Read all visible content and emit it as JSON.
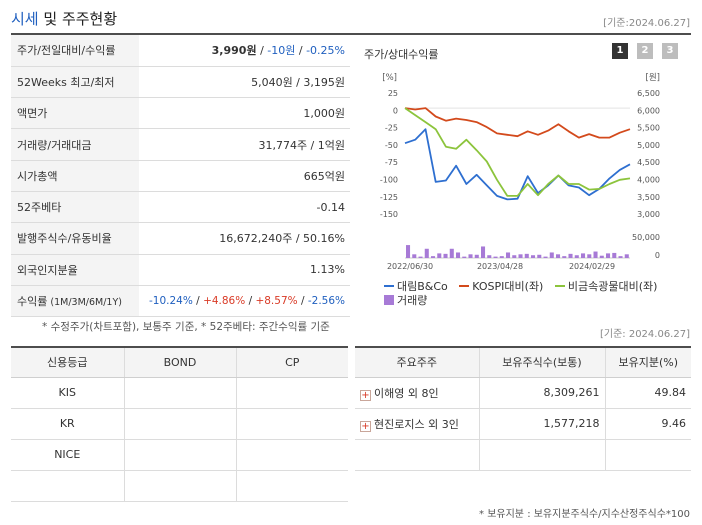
{
  "header": {
    "title_a": "시세",
    "title_b": " 및 주주현황",
    "date": "[기준:2024.06.27]"
  },
  "info": {
    "rows": [
      {
        "key": "주가/전일대비/수익률",
        "v1": "3,990원",
        "v2": " / ",
        "v3": "-10원",
        "v4": " / ",
        "v5": "-0.25%"
      },
      {
        "key": "52Weeks 최고/최저",
        "value": "5,040원 / 3,195원"
      },
      {
        "key": "액면가",
        "value": "1,000원"
      },
      {
        "key": "거래량/거래대금",
        "value": "31,774주 / 1억원"
      },
      {
        "key": "시가총액",
        "value": "665억원"
      },
      {
        "key": "52주베타",
        "value": "-0.14"
      },
      {
        "key": "발행주식수/유동비율",
        "value": "16,672,240주 / 50.16%"
      },
      {
        "key": "외국인지분율",
        "value": "1.13%"
      }
    ],
    "returns": {
      "key": "수익률",
      "key_sub": " (1M/3M/6M/1Y)",
      "r1": "-10.24%",
      "r2": "+4.86%",
      "r3": "+8.57%",
      "r4": "-2.56%",
      "sep": "/"
    },
    "note": "* 수정주가(차트포함), 보통주 기준, * 52주베타: 주간수익률 기준"
  },
  "chart": {
    "title": "주가/상대수익률",
    "pages": [
      "1",
      "2",
      "3"
    ],
    "left_unit": "[%]",
    "right_unit": "[원]",
    "colors": {
      "company": "#2e6fd0",
      "kospi": "#d34a1c",
      "sector": "#8cc43c",
      "volume": "#a77ad6"
    },
    "legend": {
      "company": "대림B&Co",
      "kospi": "KOSPI대비(좌)",
      "sector": "비금속광물대비(좌)",
      "volume": "거래량"
    }
  },
  "chart_data": {
    "type": "line",
    "x_ticks": [
      "2022/06/30",
      "2023/04/28",
      "2024/02/29"
    ],
    "y_left_ticks": [
      "25",
      "0",
      "-25",
      "-50",
      "-75",
      "-100",
      "-125",
      "-150"
    ],
    "y_right_ticks": [
      "6,500",
      "6,000",
      "5,500",
      "5,000",
      "4,500",
      "4,000",
      "3,500",
      "3,000"
    ],
    "y_left_range": [
      -155,
      30
    ],
    "volume_ticks": [
      "50,000",
      "0"
    ],
    "volume_max": 65000,
    "series": [
      {
        "name": "대림B&Co",
        "key": "company",
        "values": [
          -50,
          -45,
          -30,
          -105,
          -103,
          -82,
          -108,
          -95,
          -110,
          -125,
          -130,
          -129,
          -97,
          -121,
          -110,
          -96,
          -110,
          -113,
          -124,
          -115,
          -100,
          -88,
          -80
        ]
      },
      {
        "name": "KOSPI대비(좌)",
        "key": "kospi",
        "values": [
          0,
          -2,
          0,
          -12,
          -18,
          -15,
          -17,
          -20,
          -27,
          -36,
          -38,
          -40,
          -33,
          -38,
          -32,
          -23,
          -33,
          -42,
          -37,
          -42,
          -42,
          -35,
          -30
        ]
      },
      {
        "name": "비금속광물대비(좌)",
        "key": "sector",
        "values": [
          0,
          -10,
          -20,
          -30,
          -55,
          -58,
          -45,
          -60,
          -76,
          -102,
          -125,
          -125,
          -108,
          -124,
          -108,
          -96,
          -108,
          -108,
          -116,
          -115,
          -108,
          -102,
          -100
        ]
      }
    ],
    "volume": [
      28000,
      8000,
      3000,
      20000,
      4000,
      10000,
      9000,
      20000,
      12000,
      3000,
      8000,
      7000,
      25000,
      6000,
      3000,
      4000,
      12000,
      6000,
      8000,
      9000,
      6000,
      7000,
      3000,
      12000,
      8000,
      4000,
      9000,
      6000,
      10000,
      8000,
      14000,
      5000,
      10000,
      11000,
      4000,
      8000
    ]
  },
  "credit": {
    "headers": [
      "신용등급",
      "BOND",
      "CP"
    ],
    "rows": [
      [
        "KIS",
        "",
        ""
      ],
      [
        "KR",
        "",
        ""
      ],
      [
        "NICE",
        "",
        ""
      ],
      [
        "",
        "",
        ""
      ]
    ]
  },
  "holders": {
    "date": "[기준: 2024.06.27]",
    "headers": [
      "주요주주",
      "보유주식수(보통)",
      "보유지분(%)"
    ],
    "rows": [
      {
        "name": "이해영 외 8인",
        "shares": "8,309,261",
        "pct": "49.84"
      },
      {
        "name": "현진로지스 외 3인",
        "shares": "1,577,218",
        "pct": "9.46"
      },
      {
        "name": "",
        "shares": "",
        "pct": ""
      }
    ],
    "note": "* 보유지분 : 보유지분주식수/지수산정주식수*100"
  }
}
